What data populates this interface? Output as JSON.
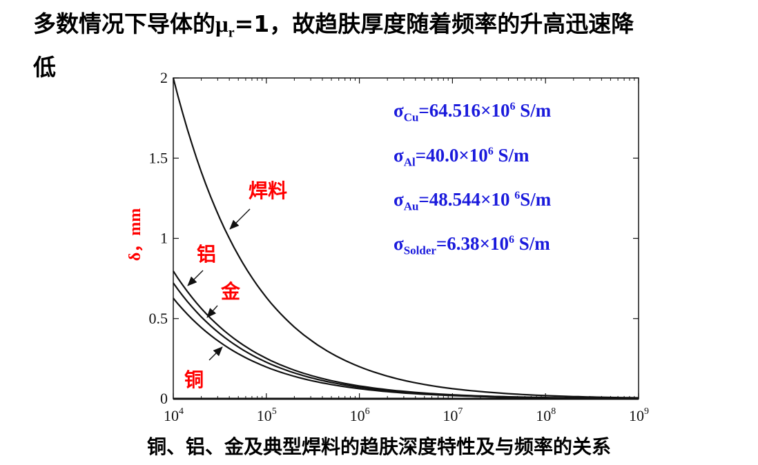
{
  "title": {
    "prefix": "多数情况下导体的",
    "mu": "μ",
    "mu_sub": "r",
    "suffix_line": "=1，故趋肤厚度随着频率的升高迅速降",
    "line2": "低"
  },
  "caption": "铜、铝、金及典型焊料的趋肤深度特性及与频率的关系",
  "conductivities": [
    {
      "symbol": "σ",
      "sub": "Cu",
      "value": "=64.516",
      "times": "×",
      "base": "10",
      "exp": "6",
      "unit": " S/m"
    },
    {
      "symbol": "σ",
      "sub": "Al",
      "value": "=40.0",
      "times": "×",
      "base": "10",
      "exp": "6",
      "unit": " S/m"
    },
    {
      "symbol": "σ",
      "sub": "Au",
      "value": "=48.544",
      "times": "×",
      "base": "10 ",
      "exp": "6",
      "unit": "S/m"
    },
    {
      "symbol": "σ",
      "sub": "Solder",
      "value": "=6.38",
      "times": "×",
      "base": "10",
      "exp": "6",
      "unit": " S/m"
    }
  ],
  "chart_data": {
    "type": "line",
    "title": "",
    "xlabel": "",
    "ylabel": "δ，mm",
    "xscale": "log",
    "xlim": [
      10000,
      1000000000
    ],
    "ylim": [
      0,
      2
    ],
    "x_ticks": [
      "10^4",
      "10^5",
      "10^6",
      "10^7",
      "10^8",
      "10^9"
    ],
    "y_ticks": [
      "0",
      "0.5",
      "1",
      "1.5",
      "2"
    ],
    "grid": false,
    "x": [
      10000,
      31623,
      100000,
      316228,
      1000000,
      3162278,
      10000000,
      31622777,
      100000000,
      316227766,
      1000000000
    ],
    "series": [
      {
        "name": "焊料",
        "values": [
          2.0,
          1.125,
          0.632,
          0.356,
          0.2,
          0.112,
          0.063,
          0.036,
          0.02,
          0.011,
          0.006
        ]
      },
      {
        "name": "铝",
        "values": [
          0.796,
          0.448,
          0.252,
          0.142,
          0.08,
          0.045,
          0.025,
          0.014,
          0.008,
          0.004,
          0.003
        ]
      },
      {
        "name": "金",
        "values": [
          0.722,
          0.406,
          0.228,
          0.128,
          0.072,
          0.041,
          0.023,
          0.013,
          0.007,
          0.004,
          0.002
        ]
      },
      {
        "name": "铜",
        "values": [
          0.627,
          0.353,
          0.198,
          0.111,
          0.063,
          0.035,
          0.02,
          0.011,
          0.006,
          0.004,
          0.002
        ]
      }
    ],
    "annotations": [
      "焊料",
      "铝",
      "金",
      "铜"
    ]
  }
}
